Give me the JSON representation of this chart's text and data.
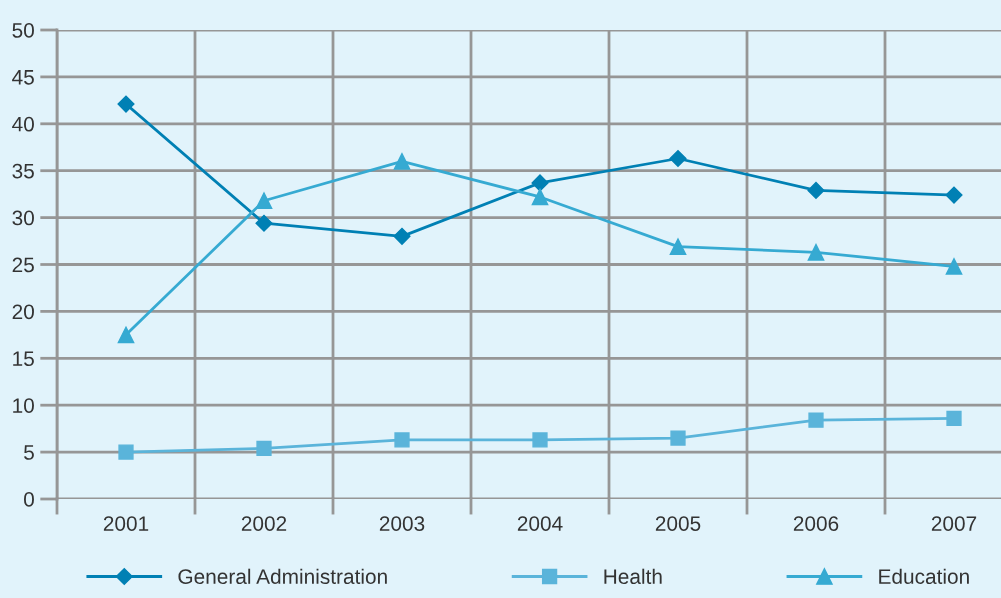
{
  "chart_data": {
    "type": "line",
    "categories": [
      "2001",
      "2002",
      "2003",
      "2004",
      "2005",
      "2006",
      "2007"
    ],
    "series": [
      {
        "name": "General Administration",
        "color": "#0080b4",
        "marker": "diamond",
        "values": [
          42.1,
          29.4,
          28.0,
          33.7,
          36.3,
          32.9,
          32.4
        ]
      },
      {
        "name": "Health",
        "color": "#5ab4da",
        "marker": "square",
        "values": [
          5.0,
          5.4,
          6.3,
          6.3,
          6.5,
          8.4,
          8.6
        ]
      },
      {
        "name": "Education",
        "color": "#36aad2",
        "marker": "triangle",
        "values": [
          17.5,
          31.8,
          36.0,
          32.2,
          26.9,
          26.3,
          24.8
        ]
      }
    ],
    "ylim": [
      0,
      50
    ],
    "yticks": [
      0,
      5,
      10,
      15,
      20,
      25,
      30,
      35,
      40,
      45,
      50
    ],
    "grid": true,
    "legend": "bottom"
  }
}
